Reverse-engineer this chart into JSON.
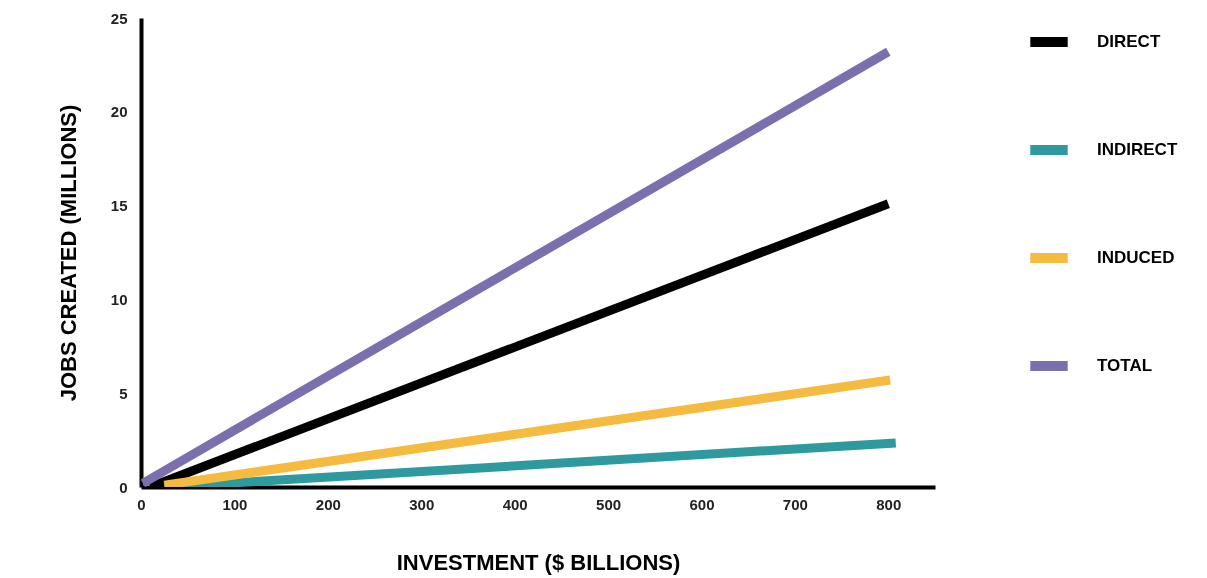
{
  "chart_data": {
    "type": "line",
    "xlabel": "INVESTMENT ($ BILLIONS)",
    "ylabel": "JOBS CREATED (MILLIONS)",
    "xlim": [
      0,
      850
    ],
    "ylim": [
      0,
      25
    ],
    "xticks": [
      0,
      100,
      200,
      300,
      400,
      500,
      600,
      700,
      800
    ],
    "yticks": [
      0,
      5,
      10,
      15,
      20,
      25
    ],
    "grid": false,
    "legend": "right",
    "line_style": "solid",
    "marker": "none",
    "series": [
      {
        "name": "DIRECT",
        "color": "#000000",
        "x": [
          10,
          800
        ],
        "values": [
          0,
          15.1
        ]
      },
      {
        "name": "INDIRECT",
        "color": "#2e9a9f",
        "x": [
          25,
          808
        ],
        "values": [
          0,
          2.35
        ]
      },
      {
        "name": "INDUCED",
        "color": "#f4bb40",
        "x": [
          25,
          802
        ],
        "values": [
          0.1,
          5.7
        ]
      },
      {
        "name": "TOTAL",
        "color": "#7b6fae",
        "x": [
          2,
          800
        ],
        "values": [
          0.2,
          23.2
        ]
      }
    ]
  }
}
